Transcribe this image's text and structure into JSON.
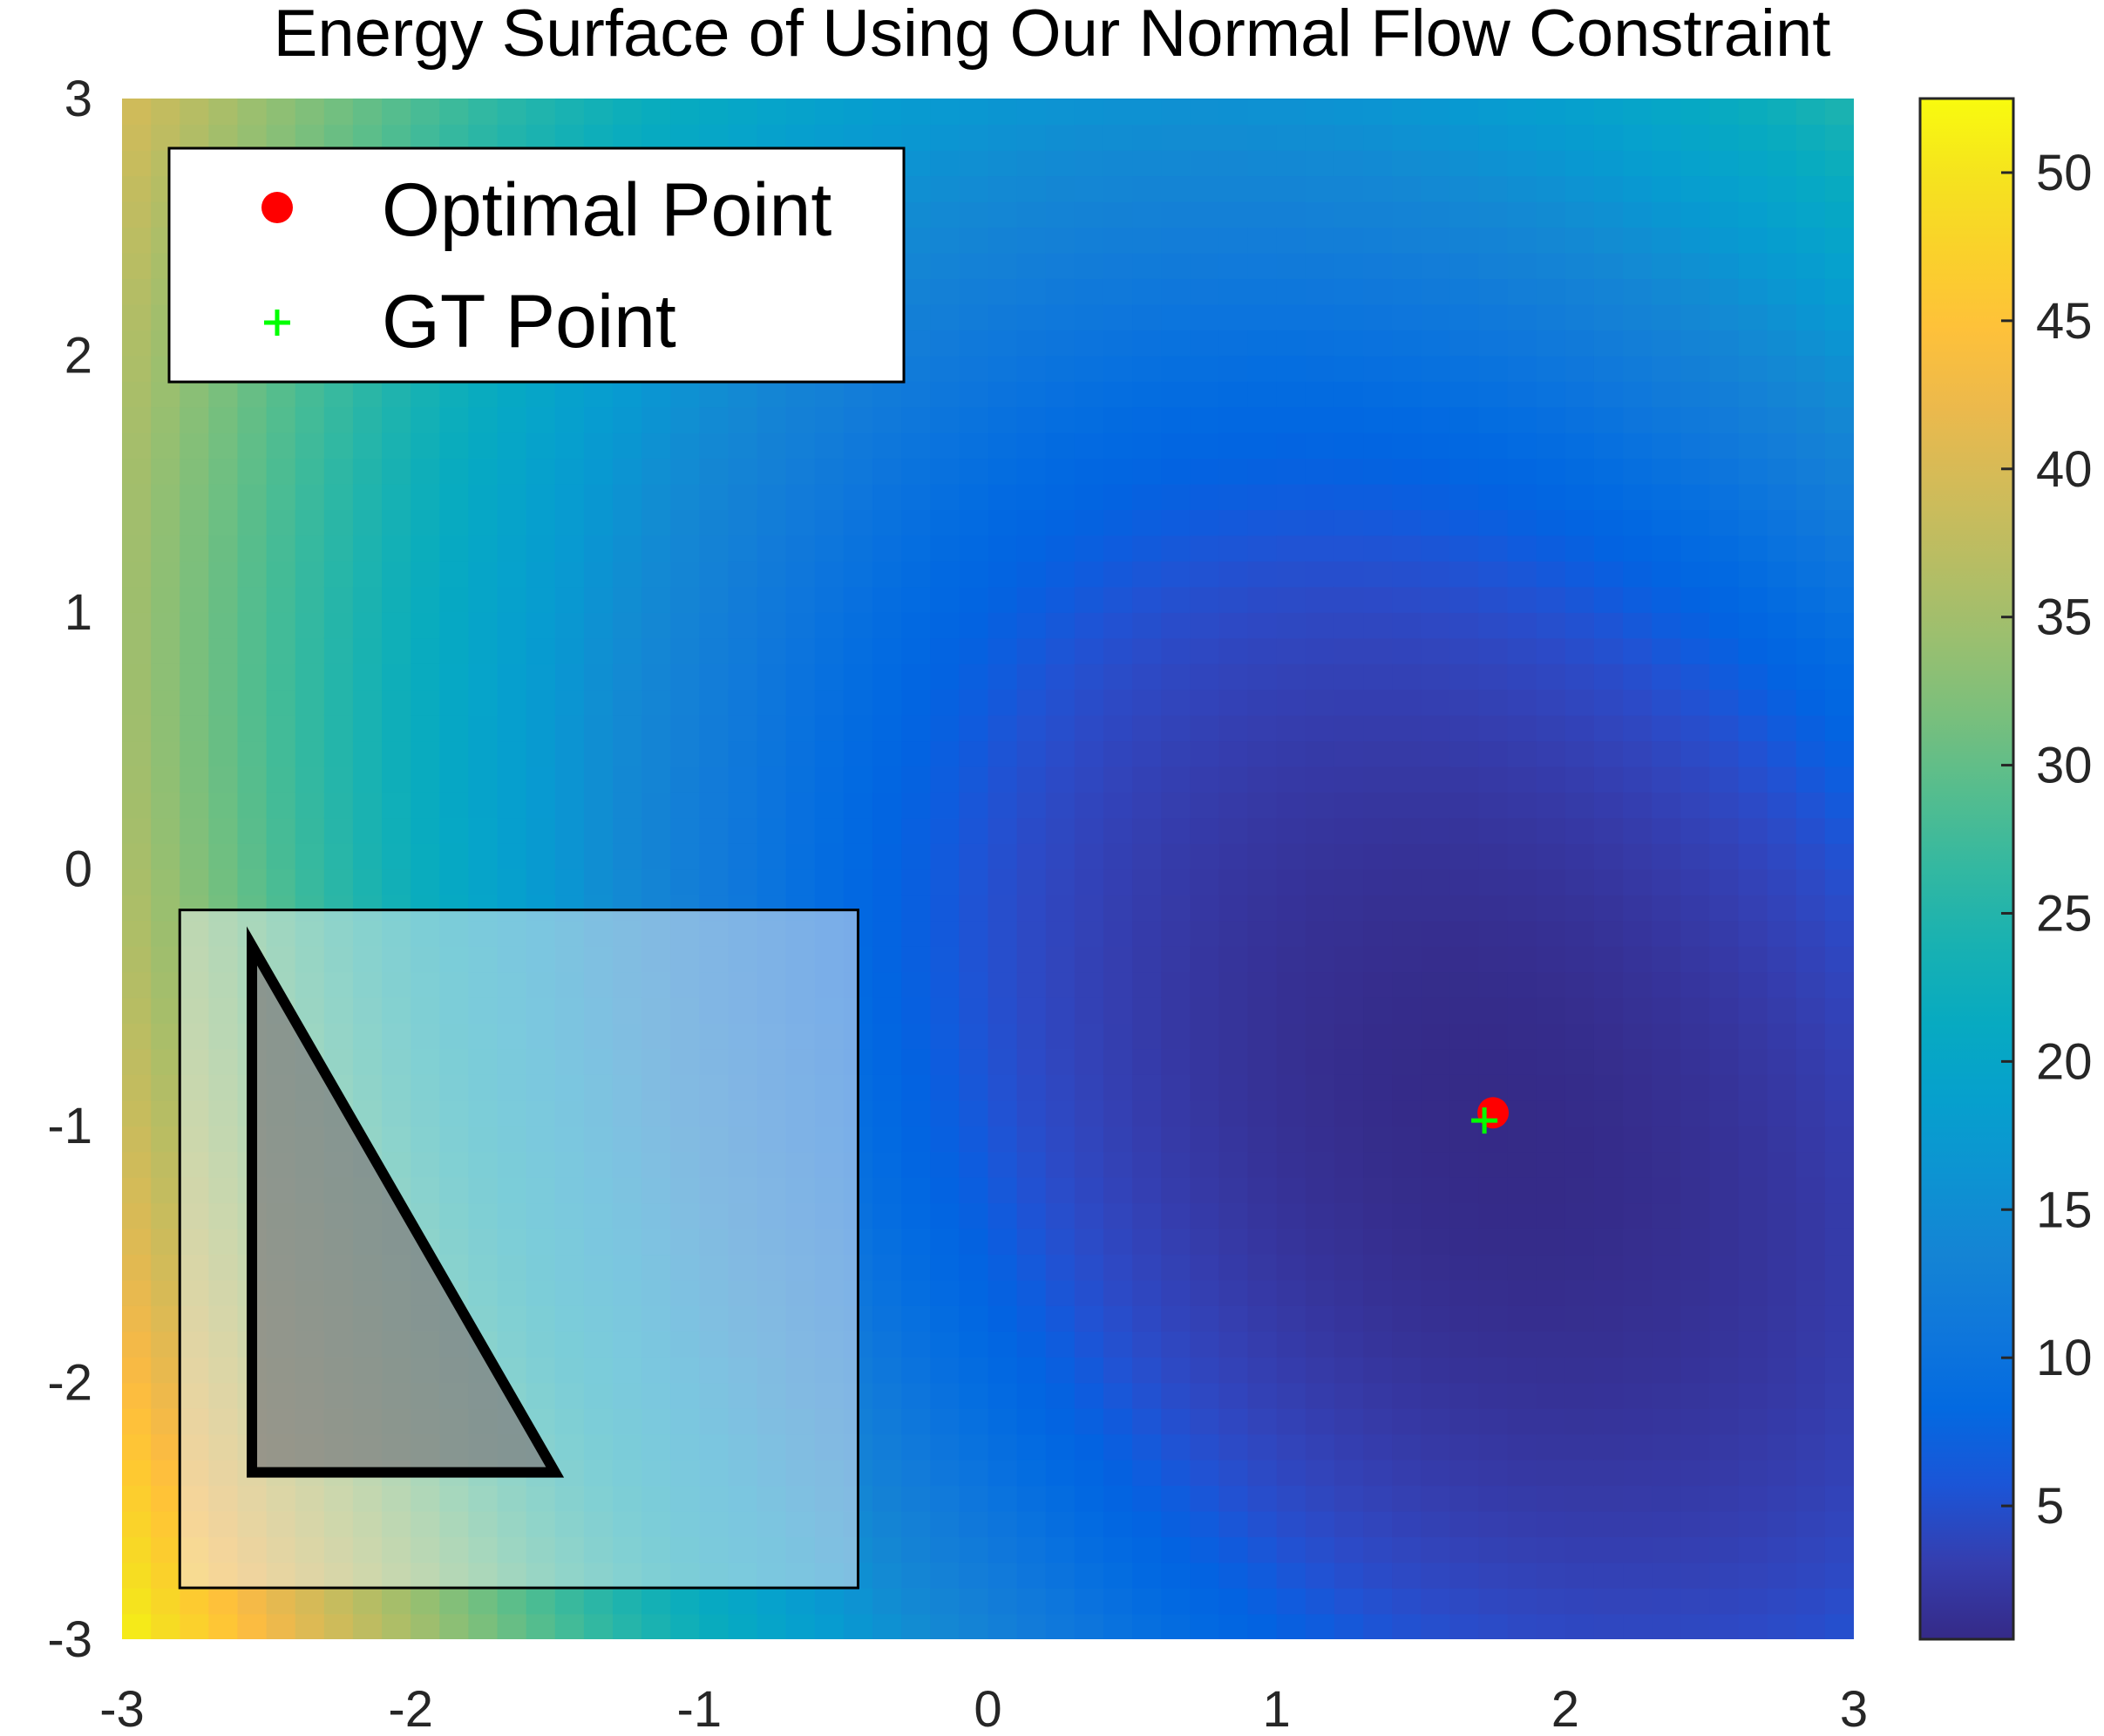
{
  "chart_data": {
    "type": "heatmap",
    "title": "Energy Surface of Using Our Normal Flow Constraint",
    "xlabel": "",
    "ylabel": "",
    "xlim": [
      -3,
      3
    ],
    "ylim": [
      -3,
      3
    ],
    "x_ticks": [
      -3,
      -2,
      -1,
      0,
      1,
      2,
      3
    ],
    "y_ticks": [
      3,
      2,
      1,
      0,
      -1,
      -2,
      -3
    ],
    "x_tick_labels": [
      "-3",
      "-2",
      "-1",
      "0",
      "1",
      "2",
      "3"
    ],
    "y_tick_labels": [
      "3",
      "2",
      "1",
      "0",
      "-1",
      "-2",
      "-3"
    ],
    "colorbar": {
      "colormap": "parula",
      "range": [
        0.5,
        52.5
      ],
      "ticks": [
        5,
        10,
        15,
        20,
        25,
        30,
        35,
        40,
        45,
        50
      ],
      "tick_labels": [
        "5",
        "10",
        "15",
        "20",
        "25",
        "30",
        "35",
        "40",
        "45",
        "50"
      ]
    },
    "surface": {
      "minimum": {
        "x": 1.75,
        "y": -1.0,
        "value": 0.5
      },
      "corner_values": {
        "top_left": 40,
        "top_right": 25,
        "bottom_left": 52,
        "bottom_right": 8
      }
    },
    "points": [
      {
        "name": "Optimal Point",
        "marker": "circle",
        "color": "#ff0000",
        "x": 1.75,
        "y": -0.95
      },
      {
        "name": "GT Point",
        "marker": "plus",
        "color": "#00ff00",
        "x": 1.72,
        "y": -0.98
      }
    ],
    "legend": {
      "location": "top-left",
      "entries": [
        "Optimal Point",
        "GT Point"
      ]
    },
    "inset": {
      "description_shape": "triangle",
      "box_x_range": [
        -2.8,
        -0.45
      ],
      "box_y_range": [
        -2.8,
        -0.16
      ],
      "triangle_vertices": [
        [
          -2.55,
          -0.3
        ],
        [
          -2.55,
          -2.35
        ],
        [
          -1.5,
          -2.35
        ]
      ],
      "box_fill": "#f0f0f0",
      "triangle_fill": "#808080"
    }
  }
}
